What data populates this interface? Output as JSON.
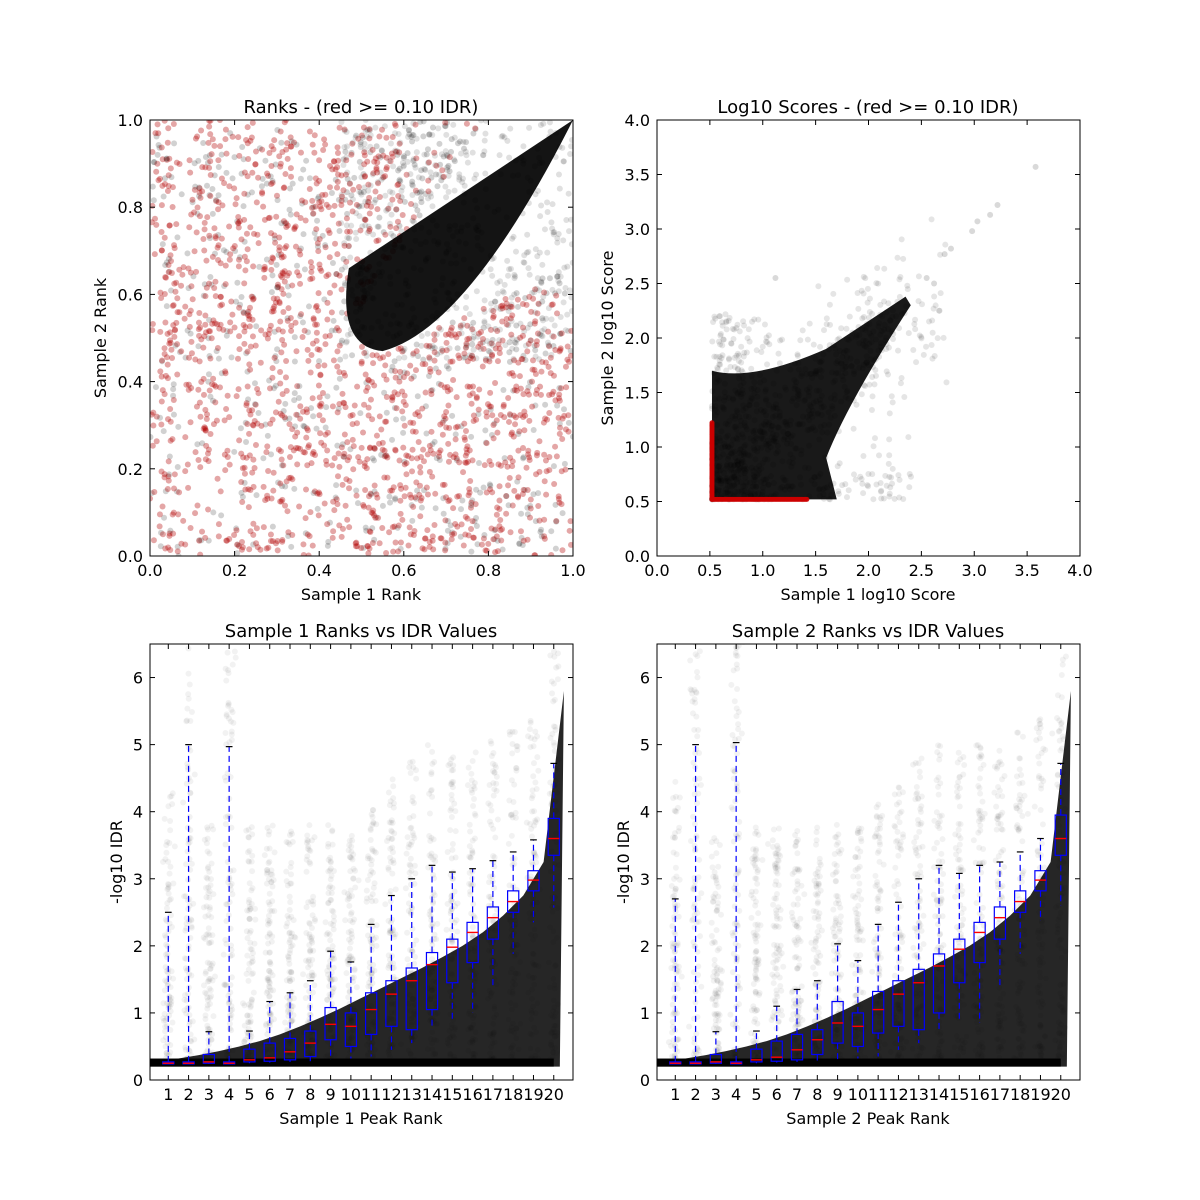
{
  "chart_data": [
    {
      "type": "scatter",
      "title": "Ranks - (red >= 0.10 IDR)",
      "xlabel": "Sample 1 Rank",
      "ylabel": "Sample 2 Rank",
      "xlim": [
        0.0,
        1.0
      ],
      "ylim": [
        0.0,
        1.0
      ],
      "xticks": [
        "0.0",
        "0.2",
        "0.4",
        "0.6",
        "0.8",
        "1.0"
      ],
      "yticks": [
        "0.0",
        "0.2",
        "0.4",
        "0.6",
        "0.8",
        "1.0"
      ],
      "grid": false,
      "colors": {
        "pass": "#000000",
        "fail": "#b30000"
      },
      "description_note": "",
      "rank_bands": [
        0.045,
        0.135,
        0.23,
        0.31,
        0.385,
        0.455,
        0.52,
        0.585,
        0.645,
        0.7,
        0.755,
        0.81,
        0.86,
        0.91,
        0.955
      ],
      "reproducible_region": {
        "x": [
          0.45,
          1.0
        ],
        "y": [
          0.48,
          1.0
        ]
      }
    },
    {
      "type": "scatter",
      "title": "Log10 Scores - (red >= 0.10 IDR)",
      "xlabel": "Sample 1 log10 Score",
      "ylabel": "Sample 2 log10 Score",
      "xlim": [
        0.0,
        4.0
      ],
      "ylim": [
        0.0,
        4.0
      ],
      "xticks": [
        "0.0",
        "0.5",
        "1.0",
        "1.5",
        "2.0",
        "2.5",
        "3.0",
        "3.5",
        "4.0"
      ],
      "yticks": [
        "0.0",
        "0.5",
        "1.0",
        "1.5",
        "2.0",
        "2.5",
        "3.0",
        "3.5",
        "4.0"
      ],
      "grid": false,
      "colors": {
        "pass": "#000000",
        "fail": "#cc0000"
      },
      "score_floor": 0.52,
      "outliers": [
        [
          3.58,
          3.57
        ],
        [
          3.22,
          3.22
        ],
        [
          3.15,
          3.13
        ],
        [
          3.03,
          3.07
        ],
        [
          2.98,
          2.98
        ],
        [
          2.78,
          2.82
        ],
        [
          2.72,
          2.77
        ],
        [
          2.55,
          2.55
        ],
        [
          1.12,
          2.55
        ],
        [
          2.62,
          2.5
        ]
      ]
    },
    {
      "type": "box",
      "title": "Sample 1 Ranks vs IDR Values",
      "xlabel": "Sample 1 Peak Rank",
      "ylabel": "-log10 IDR",
      "ylim": [
        0,
        6.5
      ],
      "yticks": [
        "0",
        "1",
        "2",
        "3",
        "4",
        "5",
        "6"
      ],
      "categories": [
        "1",
        "2",
        "3",
        "4",
        "5",
        "6",
        "7",
        "8",
        "9",
        "10",
        "11",
        "12",
        "13",
        "14",
        "15",
        "16",
        "17",
        "18",
        "19",
        "20"
      ],
      "colors": {
        "box": "#0000ff",
        "median": "#ff0000",
        "points": "#000000"
      },
      "boxes": [
        {
          "wlo": 0.24,
          "q1": 0.24,
          "med": 0.25,
          "q3": 0.27,
          "whi": 2.5
        },
        {
          "wlo": 0.24,
          "q1": 0.24,
          "med": 0.25,
          "q3": 0.27,
          "whi": 5.0
        },
        {
          "wlo": 0.24,
          "q1": 0.25,
          "med": 0.27,
          "q3": 0.38,
          "whi": 0.72
        },
        {
          "wlo": 0.24,
          "q1": 0.24,
          "med": 0.25,
          "q3": 0.27,
          "whi": 4.97
        },
        {
          "wlo": 0.25,
          "q1": 0.27,
          "med": 0.3,
          "q3": 0.46,
          "whi": 0.73
        },
        {
          "wlo": 0.26,
          "q1": 0.28,
          "med": 0.33,
          "q3": 0.55,
          "whi": 1.17
        },
        {
          "wlo": 0.27,
          "q1": 0.3,
          "med": 0.42,
          "q3": 0.62,
          "whi": 1.3
        },
        {
          "wlo": 0.28,
          "q1": 0.35,
          "med": 0.55,
          "q3": 0.73,
          "whi": 1.48
        },
        {
          "wlo": 0.3,
          "q1": 0.6,
          "med": 0.83,
          "q3": 1.08,
          "whi": 1.92
        },
        {
          "wlo": 0.32,
          "q1": 0.5,
          "med": 0.8,
          "q3": 1.0,
          "whi": 1.76
        },
        {
          "wlo": 0.35,
          "q1": 0.68,
          "med": 1.05,
          "q3": 1.3,
          "whi": 2.32
        },
        {
          "wlo": 0.45,
          "q1": 0.8,
          "med": 1.28,
          "q3": 1.48,
          "whi": 2.75
        },
        {
          "wlo": 0.55,
          "q1": 0.75,
          "med": 1.48,
          "q3": 1.67,
          "whi": 3.0
        },
        {
          "wlo": 0.75,
          "q1": 1.05,
          "med": 1.72,
          "q3": 1.9,
          "whi": 3.2
        },
        {
          "wlo": 0.9,
          "q1": 1.45,
          "med": 1.98,
          "q3": 2.1,
          "whi": 3.1
        },
        {
          "wlo": 1.0,
          "q1": 1.75,
          "med": 2.2,
          "q3": 2.35,
          "whi": 3.15
        },
        {
          "wlo": 1.4,
          "q1": 2.1,
          "med": 2.42,
          "q3": 2.58,
          "whi": 3.27
        },
        {
          "wlo": 1.88,
          "q1": 2.5,
          "med": 2.66,
          "q3": 2.82,
          "whi": 3.4
        },
        {
          "wlo": 2.35,
          "q1": 2.82,
          "med": 2.98,
          "q3": 3.12,
          "whi": 3.58
        },
        {
          "wlo": 2.57,
          "q1": 3.35,
          "med": 3.6,
          "q3": 3.9,
          "whi": 4.72
        }
      ],
      "tail": [
        0.28,
        0.32,
        0.37,
        0.43,
        0.5,
        0.58,
        0.68,
        0.8,
        0.93,
        1.07,
        1.22,
        1.37,
        1.52,
        1.67,
        1.83,
        2.0,
        2.2,
        2.45,
        2.75,
        3.25,
        5.8
      ]
    },
    {
      "type": "box",
      "title": "Sample 2 Ranks vs IDR Values",
      "xlabel": "Sample 2 Peak Rank",
      "ylabel": "-log10 IDR",
      "ylim": [
        0,
        6.5
      ],
      "yticks": [
        "0",
        "1",
        "2",
        "3",
        "4",
        "5",
        "6"
      ],
      "categories": [
        "1",
        "2",
        "3",
        "4",
        "5",
        "6",
        "7",
        "8",
        "9",
        "10",
        "11",
        "12",
        "13",
        "14",
        "15",
        "16",
        "17",
        "18",
        "19",
        "20"
      ],
      "colors": {
        "box": "#0000ff",
        "median": "#ff0000",
        "points": "#000000"
      },
      "boxes": [
        {
          "wlo": 0.24,
          "q1": 0.24,
          "med": 0.25,
          "q3": 0.27,
          "whi": 2.7
        },
        {
          "wlo": 0.24,
          "q1": 0.24,
          "med": 0.25,
          "q3": 0.27,
          "whi": 5.0
        },
        {
          "wlo": 0.24,
          "q1": 0.25,
          "med": 0.27,
          "q3": 0.38,
          "whi": 0.72
        },
        {
          "wlo": 0.24,
          "q1": 0.24,
          "med": 0.25,
          "q3": 0.27,
          "whi": 5.03
        },
        {
          "wlo": 0.25,
          "q1": 0.27,
          "med": 0.3,
          "q3": 0.46,
          "whi": 0.73
        },
        {
          "wlo": 0.26,
          "q1": 0.28,
          "med": 0.34,
          "q3": 0.58,
          "whi": 1.1
        },
        {
          "wlo": 0.27,
          "q1": 0.3,
          "med": 0.45,
          "q3": 0.68,
          "whi": 1.35
        },
        {
          "wlo": 0.28,
          "q1": 0.38,
          "med": 0.6,
          "q3": 0.75,
          "whi": 1.48
        },
        {
          "wlo": 0.3,
          "q1": 0.55,
          "med": 0.85,
          "q3": 1.17,
          "whi": 2.03
        },
        {
          "wlo": 0.32,
          "q1": 0.5,
          "med": 0.8,
          "q3": 1.0,
          "whi": 1.78
        },
        {
          "wlo": 0.35,
          "q1": 0.7,
          "med": 1.05,
          "q3": 1.32,
          "whi": 2.32
        },
        {
          "wlo": 0.45,
          "q1": 0.8,
          "med": 1.28,
          "q3": 1.48,
          "whi": 2.65
        },
        {
          "wlo": 0.55,
          "q1": 0.75,
          "med": 1.45,
          "q3": 1.65,
          "whi": 3.0
        },
        {
          "wlo": 0.75,
          "q1": 1.0,
          "med": 1.7,
          "q3": 1.88,
          "whi": 3.2
        },
        {
          "wlo": 0.9,
          "q1": 1.45,
          "med": 1.95,
          "q3": 2.1,
          "whi": 3.08
        },
        {
          "wlo": 0.85,
          "q1": 1.75,
          "med": 2.2,
          "q3": 2.35,
          "whi": 3.2
        },
        {
          "wlo": 1.4,
          "q1": 2.1,
          "med": 2.42,
          "q3": 2.58,
          "whi": 3.25
        },
        {
          "wlo": 1.88,
          "q1": 2.5,
          "med": 2.66,
          "q3": 2.82,
          "whi": 3.4
        },
        {
          "wlo": 2.37,
          "q1": 2.82,
          "med": 2.98,
          "q3": 3.12,
          "whi": 3.6
        },
        {
          "wlo": 2.6,
          "q1": 3.35,
          "med": 3.6,
          "q3": 3.95,
          "whi": 4.72
        }
      ],
      "tail": [
        0.28,
        0.32,
        0.37,
        0.43,
        0.5,
        0.58,
        0.68,
        0.8,
        0.93,
        1.07,
        1.22,
        1.37,
        1.52,
        1.67,
        1.83,
        2.0,
        2.2,
        2.45,
        2.75,
        3.25,
        5.8
      ]
    }
  ]
}
